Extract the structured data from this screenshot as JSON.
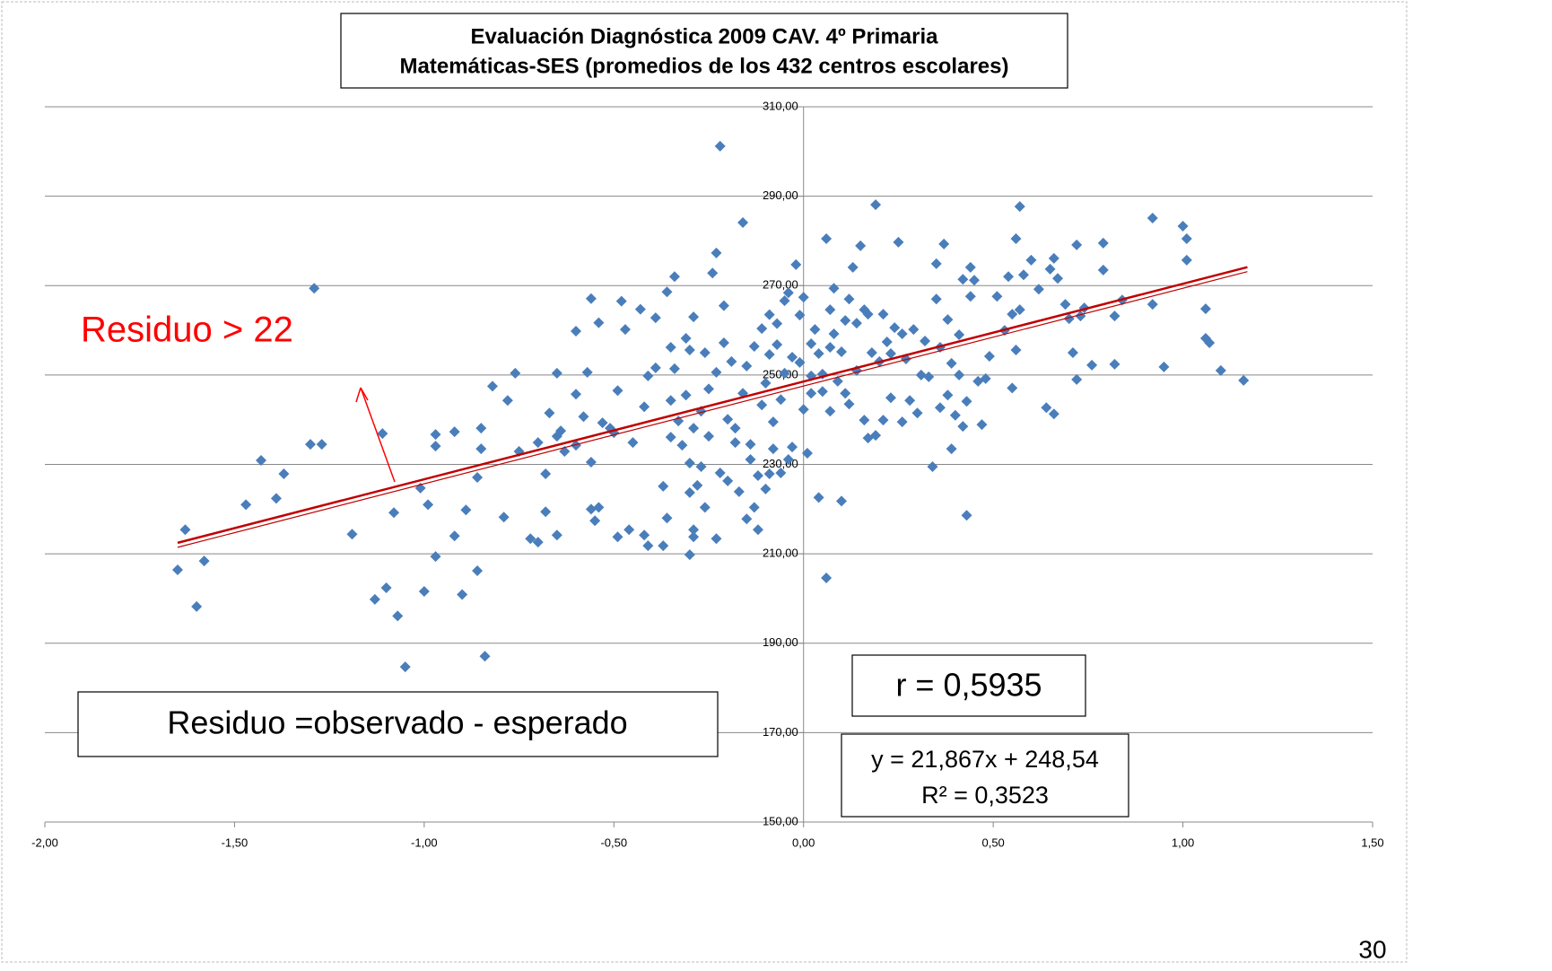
{
  "chart_data": {
    "type": "scatter",
    "title": "Evaluación Diagnóstica 2009  CAV. 4º Primaria",
    "subtitle": "Matemáticas-SES (promedios de los 432 centros escolares)",
    "color": "#4a7ebb",
    "grid": true,
    "xlim": [
      -2,
      1.5
    ],
    "ylim": [
      150,
      310
    ],
    "xticks": [
      {
        "value": -2,
        "label": "-2,00"
      },
      {
        "value": -1.5,
        "label": "-1,50"
      },
      {
        "value": -1,
        "label": "-1,00"
      },
      {
        "value": -0.5,
        "label": "-0,50"
      },
      {
        "value": 0,
        "label": "0,00"
      },
      {
        "value": 0.5,
        "label": "0,50"
      },
      {
        "value": 1,
        "label": "1,00"
      },
      {
        "value": 1.5,
        "label": "1,50"
      }
    ],
    "yticks": [
      {
        "value": 150,
        "label": "150,00"
      },
      {
        "value": 170,
        "label": "170,00"
      },
      {
        "value": 190,
        "label": "190,00"
      },
      {
        "value": 210,
        "label": "210,00"
      },
      {
        "value": 230,
        "label": "230,00"
      },
      {
        "value": 250,
        "label": "250,00"
      },
      {
        "value": 270,
        "label": "270,00"
      },
      {
        "value": 290,
        "label": "290,00"
      },
      {
        "value": 310,
        "label": "310,00"
      }
    ],
    "x": [
      -1.65,
      -1.63,
      -1.58,
      -1.6,
      -1.47,
      -1.43,
      -1.39,
      -1.37,
      -1.3,
      -1.27,
      -1.29,
      -1.19,
      -1.13,
      -1.11,
      -1.1,
      -1.08,
      -1.07,
      -1.05,
      -1.01,
      -1.0,
      -0.99,
      -0.97,
      -0.97,
      -0.97,
      -0.92,
      -0.92,
      -0.9,
      -0.89,
      -0.86,
      -0.86,
      -0.85,
      -0.85,
      -0.84,
      -0.82,
      -0.79,
      -0.78,
      -0.76,
      -0.75,
      -0.72,
      -0.7,
      -0.7,
      -0.68,
      -0.68,
      -0.67,
      -0.65,
      -0.65,
      -0.64,
      -0.65,
      -0.63,
      -0.6,
      -0.6,
      -0.6,
      -0.58,
      -0.57,
      -0.56,
      -0.56,
      -0.56,
      -0.55,
      -0.54,
      -0.54,
      -0.53,
      -0.51,
      -0.5,
      -0.49,
      -0.49,
      -0.48,
      -0.47,
      -0.46,
      -0.45,
      -0.43,
      -0.42,
      -0.42,
      -0.41,
      -0.41,
      -0.39,
      -0.39,
      -0.37,
      -0.37,
      -0.36,
      -0.36,
      -0.35,
      -0.35,
      -0.35,
      -0.34,
      -0.34,
      -0.33,
      -0.32,
      -0.31,
      -0.31,
      -0.3,
      -0.3,
      -0.3,
      -0.3,
      -0.29,
      -0.29,
      -0.29,
      -0.29,
      -0.28,
      -0.27,
      -0.27,
      -0.26,
      -0.26,
      -0.25,
      -0.25,
      -0.24,
      -0.23,
      -0.23,
      -0.23,
      -0.22,
      -0.22,
      -0.21,
      -0.21,
      -0.2,
      -0.2,
      -0.19,
      -0.18,
      -0.18,
      -0.17,
      -0.16,
      -0.16,
      -0.15,
      -0.15,
      -0.14,
      -0.14,
      -0.13,
      -0.13,
      -0.12,
      -0.12,
      -0.11,
      -0.11,
      -0.1,
      -0.1,
      -0.09,
      -0.09,
      -0.09,
      -0.08,
      -0.08,
      -0.07,
      -0.07,
      -0.06,
      -0.06,
      -0.05,
      -0.05,
      -0.04,
      -0.04,
      -0.03,
      -0.03,
      -0.02,
      -0.01,
      -0.01,
      0,
      0,
      0.01,
      0.02,
      0.02,
      0.02,
      0.03,
      0.04,
      0.04,
      0.05,
      0.05,
      0.06,
      0.06,
      0.07,
      0.07,
      0.07,
      0.08,
      0.08,
      0.09,
      0.1,
      0.1,
      0.11,
      0.11,
      0.12,
      0.12,
      0.13,
      0.14,
      0.14,
      0.15,
      0.16,
      0.16,
      0.17,
      0.17,
      0.18,
      0.19,
      0.19,
      0.2,
      0.21,
      0.21,
      0.22,
      0.23,
      0.23,
      0.24,
      0.25,
      0.26,
      0.26,
      0.27,
      0.28,
      0.29,
      0.3,
      0.31,
      0.32,
      0.33,
      0.34,
      0.35,
      0.35,
      0.36,
      0.36,
      0.37,
      0.38,
      0.38,
      0.39,
      0.39,
      0.4,
      0.41,
      0.41,
      0.42,
      0.42,
      0.43,
      0.43,
      0.44,
      0.44,
      0.45,
      0.46,
      0.47,
      0.48,
      0.49,
      0.51,
      0.53,
      0.54,
      0.55,
      0.55,
      0.56,
      0.56,
      0.57,
      0.57,
      0.58,
      0.6,
      0.62,
      0.64,
      0.65,
      0.66,
      0.66,
      0.67,
      0.69,
      0.7,
      0.71,
      0.72,
      0.72,
      0.73,
      0.74,
      0.76,
      0.79,
      0.79,
      0.82,
      0.82,
      0.84,
      0.92,
      0.92,
      0.95,
      1.0,
      1.01,
      1.01,
      1.06,
      1.06,
      1.07,
      1.1,
      1.16
    ],
    "values": [
      206.4,
      215.4,
      208.4,
      198.2,
      221,
      230.9,
      222.4,
      227.9,
      234.5,
      234.5,
      269.4,
      214.4,
      199.8,
      236.9,
      202.4,
      219.2,
      196.1,
      184.7,
      224.7,
      201.6,
      221,
      209.4,
      236.7,
      234.1,
      214,
      237.3,
      200.9,
      219.8,
      206.2,
      227.1,
      238.1,
      233.5,
      187.1,
      247.5,
      218.2,
      244.3,
      250.4,
      232.9,
      213.4,
      212.6,
      234.9,
      219.4,
      227.9,
      241.5,
      214.2,
      236.3,
      237.5,
      250.4,
      232.9,
      245.7,
      259.8,
      234.3,
      240.7,
      250.6,
      267.1,
      230.5,
      220,
      217.4,
      220.4,
      261.7,
      239.3,
      238.1,
      237.1,
      213.8,
      246.5,
      266.5,
      260.2,
      215.4,
      234.9,
      264.7,
      242.9,
      214.2,
      211.8,
      249.8,
      251.6,
      262.8,
      225.1,
      211.8,
      218,
      268.6,
      256.2,
      244.3,
      236.1,
      272,
      251.4,
      239.7,
      234.3,
      258.2,
      245.5,
      209.8,
      223.7,
      230.3,
      255.6,
      215.4,
      213.8,
      263,
      238.1,
      225.3,
      229.5,
      241.9,
      220.4,
      255,
      236.3,
      246.9,
      272.8,
      250.6,
      213.4,
      277.3,
      228.1,
      301.2,
      257.2,
      265.5,
      226.3,
      240.1,
      253,
      234.9,
      238.1,
      223.9,
      245.9,
      284.1,
      252,
      217.8,
      234.5,
      231.1,
      220.4,
      256.4,
      227.5,
      215.4,
      243.3,
      260.4,
      224.5,
      248.2,
      254.6,
      227.9,
      263.5,
      239.5,
      233.5,
      261.5,
      256.8,
      244.5,
      228.1,
      266.6,
      250.4,
      268.4,
      231.1,
      233.9,
      254,
      274.7,
      252.8,
      263.4,
      267.4,
      242.3,
      232.5,
      257,
      249.8,
      245.9,
      260.2,
      254.8,
      222.6,
      246.3,
      250.2,
      280.5,
      204.6,
      256.2,
      264.6,
      241.9,
      259.2,
      269.4,
      248.6,
      255.2,
      221.8,
      245.9,
      262.2,
      267,
      243.5,
      274.1,
      251,
      261.6,
      278.9,
      239.9,
      264.6,
      235.9,
      263.6,
      255,
      236.5,
      288.1,
      253,
      239.9,
      263.6,
      257.4,
      244.9,
      254.8,
      260.6,
      279.7,
      259.2,
      239.5,
      253.6,
      244.3,
      260.2,
      241.5,
      250,
      257.6,
      249.6,
      229.5,
      267,
      274.9,
      242.7,
      256.2,
      279.3,
      245.5,
      262.4,
      252.6,
      233.5,
      241,
      250,
      259,
      238.5,
      271.4,
      218.6,
      244.1,
      267.6,
      274.1,
      271.2,
      248.6,
      238.9,
      249.2,
      254.2,
      267.6,
      260,
      272,
      247.1,
      263.6,
      255.6,
      280.5,
      287.7,
      264.6,
      272.4,
      275.7,
      269.2,
      242.7,
      273.7,
      276.1,
      241.3,
      271.6,
      265.8,
      262.6,
      255,
      279.1,
      249,
      263.2,
      265,
      252.2,
      273.5,
      279.5,
      263.2,
      252.4,
      266.8,
      285.1,
      265.8,
      251.8,
      283.3,
      275.7,
      280.5,
      264.8,
      258.2,
      257.2,
      251,
      248.8
    ],
    "trendline": {
      "slope": 21.867,
      "intercept": 248.54,
      "xrange": [
        -1.65,
        1.17
      ],
      "color": "#c00000",
      "equation": "y = 21,867x + 248,54",
      "r2_label": "R² = 0,3523"
    },
    "correlation_label": "r = 0,5935",
    "annotations": [
      "Residuo > 22",
      "Residuo =observado - esperado"
    ],
    "page_number": "30"
  }
}
